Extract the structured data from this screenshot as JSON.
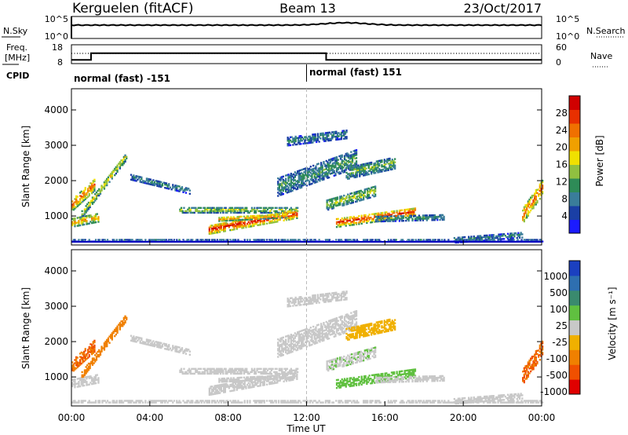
{
  "header": {
    "station": "Kerguelen (fitACF)",
    "beam": "Beam 13",
    "date": "23/Oct/2017"
  },
  "top_panel": {
    "left_label": "N.Sky",
    "left_ticks": [
      "10^5",
      "10^0"
    ],
    "right_ticks": [
      "10^5",
      "10^0"
    ],
    "right_label": "N.Search"
  },
  "freq_panel": {
    "left_label_1": "Freq.",
    "left_label_2": "[MHz]",
    "left_ticks": [
      "18",
      "8"
    ],
    "right_ticks": [
      "60",
      "0"
    ],
    "right_label": "Nave",
    "cpid_label": "CPID",
    "cpid_entries": [
      "normal (fast) -151",
      "normal (fast) 151"
    ],
    "cpid_switch_hour": 12
  },
  "chart_data": [
    {
      "type": "heatmap",
      "title": "",
      "ylabel": "Slant Range [km]",
      "yticks": [
        1000,
        2000,
        3000,
        4000
      ],
      "ylim": [
        180,
        4600
      ],
      "xlim": [
        0,
        24
      ],
      "colorbar_label": "Power [dB]",
      "colorbar_ticks": [
        "4",
        "8",
        "12",
        "16",
        "20",
        "24",
        "28"
      ],
      "colorbar_colors": [
        "#1b1bff",
        "#1a3fa5",
        "#3a7d9a",
        "#2e8b57",
        "#90c040",
        "#f0e000",
        "#f0a000",
        "#f07000",
        "#e83000",
        "#d00000"
      ]
    },
    {
      "type": "heatmap",
      "title": "",
      "ylabel": "Slant Range [km]",
      "yticks": [
        1000,
        2000,
        3000,
        4000
      ],
      "ylim": [
        180,
        4600
      ],
      "xlim": [
        0,
        24
      ],
      "xlabel": "Time UT",
      "xticks": [
        "00:00",
        "04:00",
        "08:00",
        "12:00",
        "16:00",
        "20:00",
        "00:00"
      ],
      "colorbar_label": "Velocity [m s⁻¹]",
      "colorbar_ticks": [
        "1000",
        "500",
        "100",
        "25",
        "-25",
        "-100",
        "-500",
        "-1000"
      ],
      "colorbar_colors": [
        "#1b40c0",
        "#2e6fb0",
        "#3a8a6e",
        "#60c040",
        "#c8c8c8",
        "#f0b000",
        "#f08000",
        "#f05000",
        "#e00000"
      ]
    }
  ]
}
